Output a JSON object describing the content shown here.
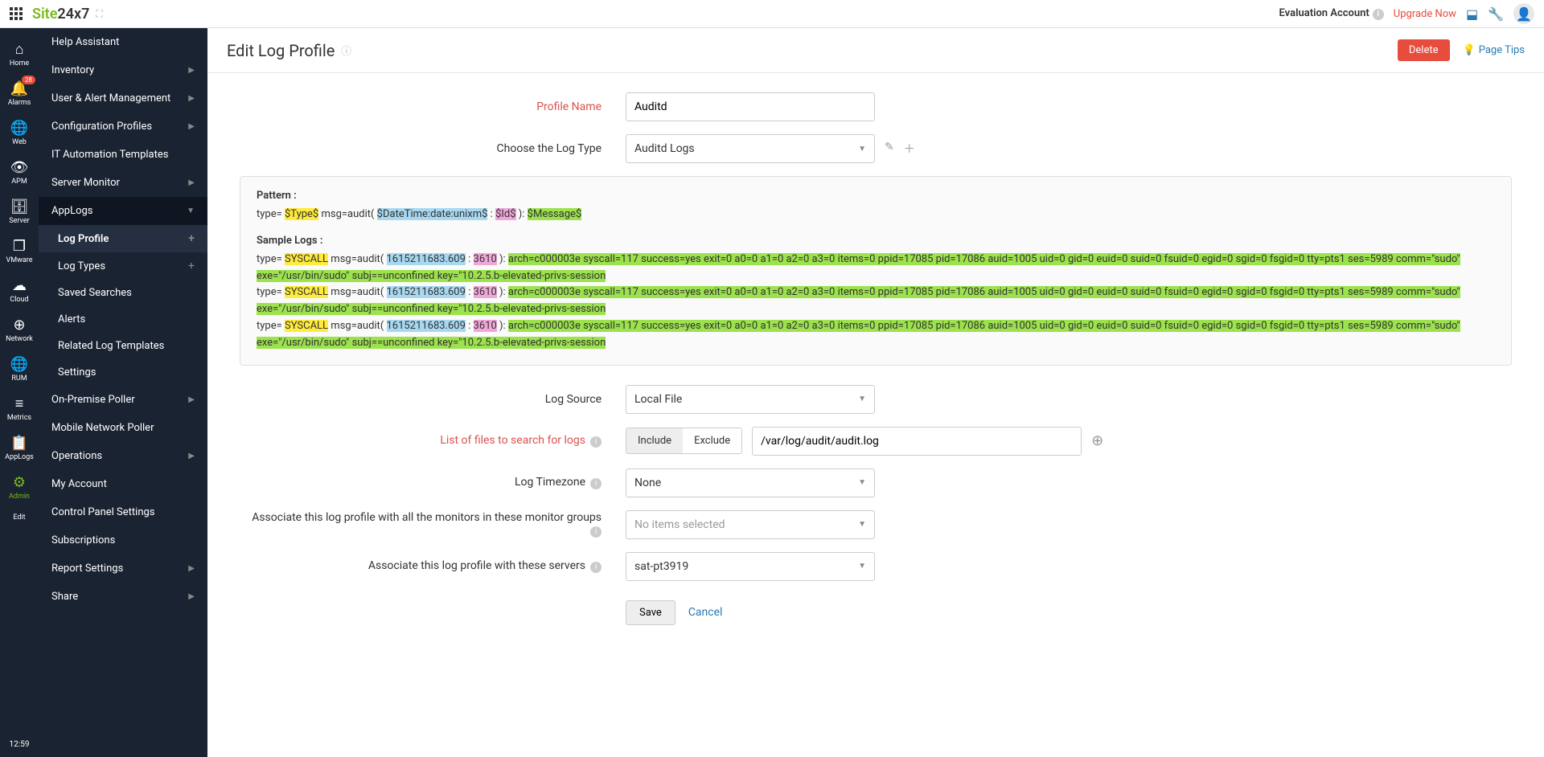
{
  "topbar": {
    "logo_green": "Site",
    "logo_dark": "24x7",
    "eval": "Evaluation Account",
    "upgrade": "Upgrade Now"
  },
  "iconbar": {
    "items": [
      {
        "label": "Home",
        "icon": "⌂"
      },
      {
        "label": "Alarms",
        "icon": "🔔",
        "badge": "28"
      },
      {
        "label": "Web",
        "icon": "🌐"
      },
      {
        "label": "APM",
        "icon": "👁"
      },
      {
        "label": "Server",
        "icon": "🗄"
      },
      {
        "label": "VMware",
        "icon": "❐"
      },
      {
        "label": "Cloud",
        "icon": "☁"
      },
      {
        "label": "Network",
        "icon": "⊕"
      },
      {
        "label": "RUM",
        "icon": "🌐"
      },
      {
        "label": "Metrics",
        "icon": "≡"
      },
      {
        "label": "AppLogs",
        "icon": "📋"
      },
      {
        "label": "Admin",
        "icon": "⚙",
        "active": true
      },
      {
        "label": "Edit",
        "icon": ""
      }
    ],
    "time": "12:59"
  },
  "sidebar": {
    "items": [
      {
        "label": "Help Assistant"
      },
      {
        "label": "Inventory",
        "caret": true
      },
      {
        "label": "User & Alert Management",
        "caret": true
      },
      {
        "label": "Configuration Profiles",
        "caret": true
      },
      {
        "label": "IT Automation Templates"
      },
      {
        "label": "Server Monitor",
        "caret": true
      },
      {
        "label": "AppLogs",
        "caret": true,
        "expanded": true,
        "children": [
          {
            "label": "Log Profile",
            "add": true,
            "active": true
          },
          {
            "label": "Log Types",
            "add": true
          },
          {
            "label": "Saved Searches"
          },
          {
            "label": "Alerts"
          },
          {
            "label": "Related Log Templates"
          },
          {
            "label": "Settings"
          }
        ]
      },
      {
        "label": "On-Premise Poller",
        "caret": true
      },
      {
        "label": "Mobile Network Poller"
      },
      {
        "label": "Operations",
        "caret": true
      },
      {
        "label": "My Account"
      },
      {
        "label": "Control Panel Settings"
      },
      {
        "label": "Subscriptions"
      },
      {
        "label": "Report Settings",
        "caret": true
      },
      {
        "label": "Share",
        "caret": true
      }
    ]
  },
  "page": {
    "title": "Edit Log Profile",
    "delete": "Delete",
    "tips": "Page Tips"
  },
  "form": {
    "profile_name_label": "Profile Name",
    "profile_name_value": "Auditd",
    "log_type_label": "Choose the Log Type",
    "log_type_value": "Auditd Logs",
    "pattern_label": "Pattern :",
    "pattern_prefix": "type= ",
    "pattern_type": "$Type$",
    "pattern_mid1": " msg=audit( ",
    "pattern_datetime": "$DateTime:date:unixm$",
    "pattern_colon": " : ",
    "pattern_id": "$Id$",
    "pattern_mid2": " ): ",
    "pattern_msg": "$Message$",
    "sample_label": "Sample Logs :",
    "sample_prefix": "type= ",
    "sample_type": "SYSCALL",
    "sample_mid1": " msg=audit( ",
    "sample_dt": "1615211683.609",
    "sample_colon": " : ",
    "sample_id": "3610",
    "sample_mid2": " ): ",
    "sample_msg": "arch=c000003e syscall=117 success=yes exit=0 a0=0 a1=0 a2=0 a3=0 items=0 ppid=17085 pid=17086 auid=1005 uid=0 gid=0 euid=0 suid=0 fsuid=0 egid=0 sgid=0 fsgid=0 tty=pts1 ses=5989 comm=\"sudo\" exe=\"/usr/bin/sudo\" subj==unconfined key=\"10.2.5.b-elevated-privs-session",
    "log_source_label": "Log Source",
    "log_source_value": "Local File",
    "files_label": "List of files to search for logs",
    "include": "Include",
    "exclude": "Exclude",
    "file_path": "/var/log/audit/audit.log",
    "timezone_label": "Log Timezone",
    "timezone_value": "None",
    "assoc_groups_label": "Associate this log profile with all the monitors in these monitor groups",
    "assoc_groups_value": "No items selected",
    "assoc_servers_label": "Associate this log profile with these servers",
    "assoc_servers_value": "sat-pt3919",
    "save": "Save",
    "cancel": "Cancel"
  }
}
